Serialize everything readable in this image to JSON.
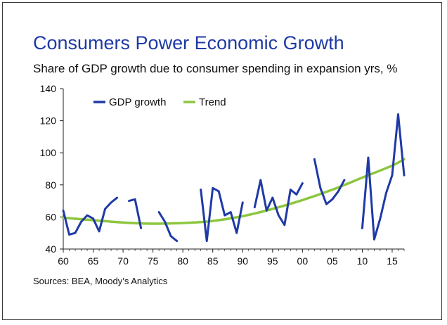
{
  "title": "Consumers Power Economic Growth",
  "subtitle": "Share of GDP growth due to consumer spending in expansion yrs, %",
  "source": "Sources: BEA, Moody’s Analytics",
  "colors": {
    "gdp": "#1f3aa6",
    "trend": "#8dc63f",
    "title": "#1f3aa6"
  },
  "chart_data": {
    "type": "line",
    "x_tick_labels": [
      "60",
      "65",
      "70",
      "75",
      "80",
      "85",
      "90",
      "95",
      "00",
      "05",
      "10",
      "15"
    ],
    "y_ticks": [
      40,
      60,
      80,
      100,
      120,
      140
    ],
    "ylim": [
      40,
      140
    ],
    "xlim": [
      1960,
      2017
    ],
    "legend_placement": "top-left",
    "grid": false,
    "series": [
      {
        "name": "GDP growth",
        "segments": [
          [
            [
              1960,
              64
            ],
            [
              1961,
              49
            ],
            [
              1962,
              50
            ],
            [
              1963,
              57
            ],
            [
              1964,
              61
            ],
            [
              1965,
              59
            ],
            [
              1966,
              51
            ],
            [
              1967,
              65
            ],
            [
              1968,
              69
            ],
            [
              1969,
              72
            ]
          ],
          [
            [
              1971,
              70
            ],
            [
              1972,
              71
            ],
            [
              1973,
              53
            ]
          ],
          [
            [
              1976,
              63
            ],
            [
              1977,
              57
            ],
            [
              1978,
              48
            ],
            [
              1979,
              45
            ]
          ],
          [
            [
              1983,
              77
            ],
            [
              1984,
              45
            ],
            [
              1985,
              78
            ],
            [
              1986,
              76
            ],
            [
              1987,
              61
            ],
            [
              1988,
              63
            ],
            [
              1989,
              50
            ],
            [
              1990,
              69
            ]
          ],
          [
            [
              1992,
              66
            ],
            [
              1993,
              83
            ],
            [
              1994,
              64
            ],
            [
              1995,
              72
            ],
            [
              1996,
              61
            ],
            [
              1997,
              55
            ],
            [
              1998,
              77
            ],
            [
              1999,
              74
            ],
            [
              2000,
              81
            ]
          ],
          [
            [
              2002,
              96
            ],
            [
              2003,
              78
            ],
            [
              2004,
              68
            ],
            [
              2005,
              71
            ],
            [
              2006,
              76
            ],
            [
              2007,
              83
            ]
          ],
          [
            [
              2010,
              53
            ],
            [
              2011,
              97
            ],
            [
              2012,
              46
            ],
            [
              2013,
              59
            ],
            [
              2014,
              75
            ],
            [
              2015,
              86
            ],
            [
              2016,
              124
            ],
            [
              2017,
              86
            ]
          ]
        ]
      },
      {
        "name": "Trend",
        "points": [
          [
            1960,
            59.5
          ],
          [
            1965,
            58
          ],
          [
            1970,
            56.5
          ],
          [
            1975,
            55.8
          ],
          [
            1980,
            56.2
          ],
          [
            1985,
            57.5
          ],
          [
            1990,
            60.5
          ],
          [
            1995,
            65
          ],
          [
            2000,
            70.5
          ],
          [
            2005,
            77
          ],
          [
            2010,
            84.5
          ],
          [
            2015,
            92
          ],
          [
            2017,
            96
          ]
        ]
      }
    ]
  }
}
